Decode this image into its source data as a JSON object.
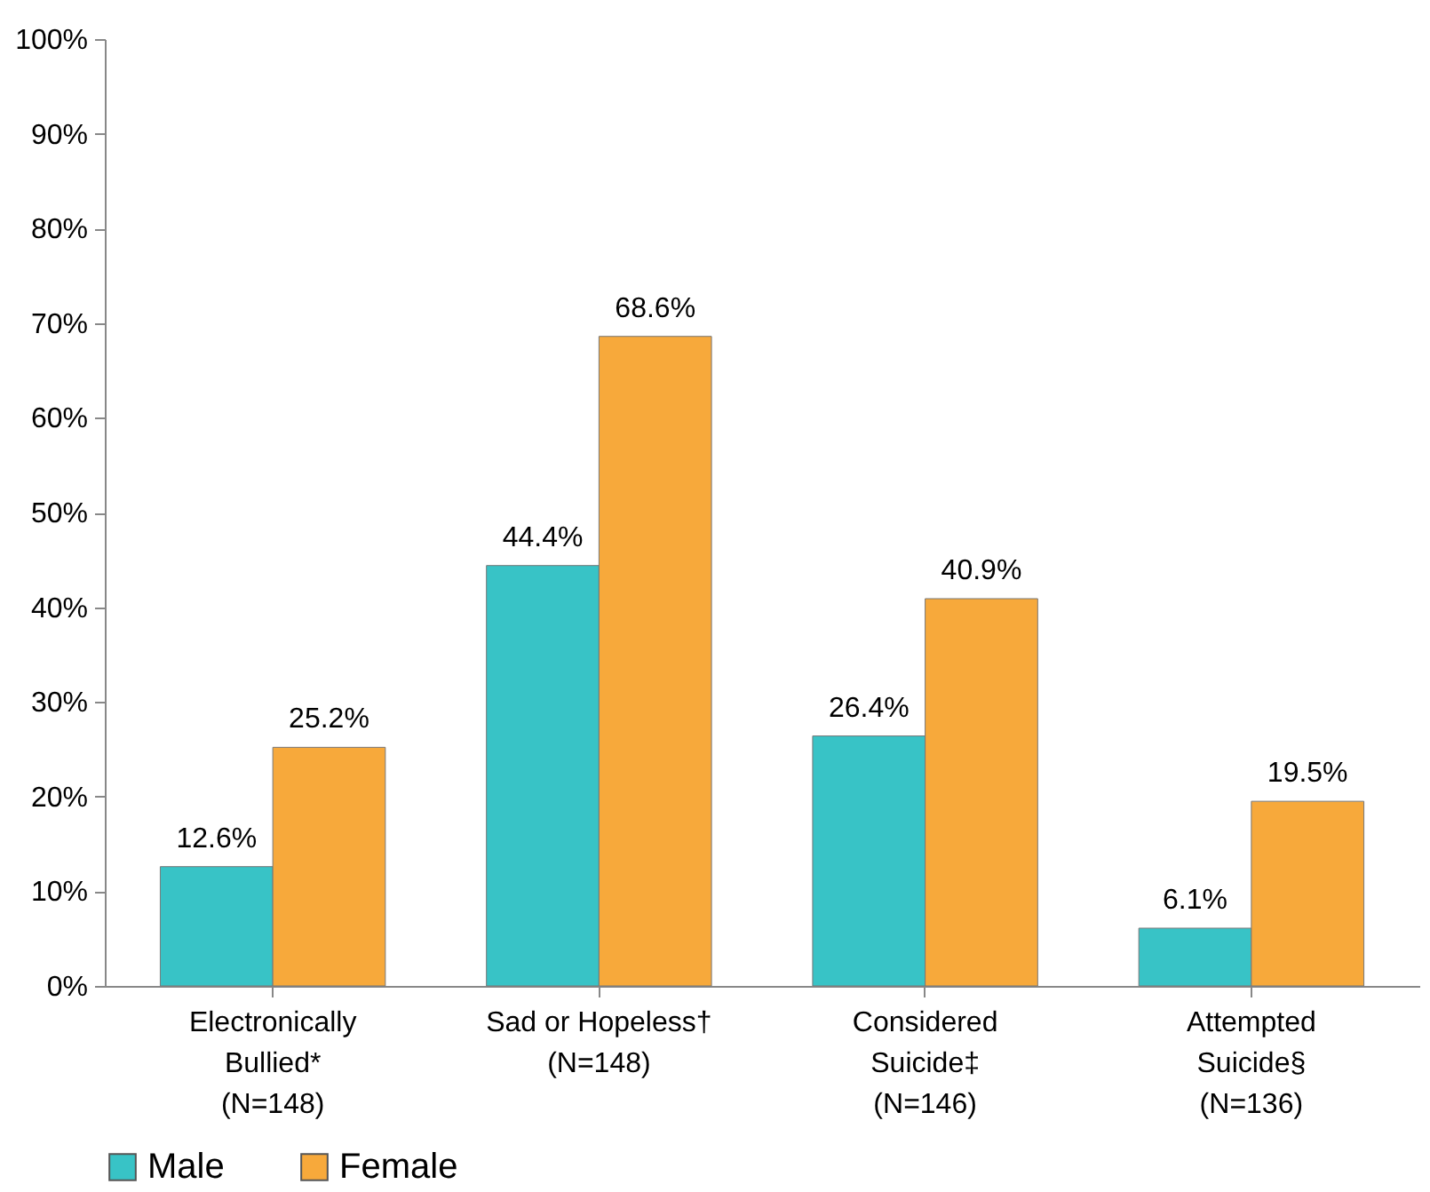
{
  "chart_data": {
    "type": "bar",
    "categories": [
      "Electronically\nBullied*\n(N=148)",
      "Sad or Hopeless†\n(N=148)",
      "Considered\nSuicide‡\n(N=146)",
      "Attempted\nSuicide§\n(N=136)"
    ],
    "series": [
      {
        "name": "Male",
        "color": "#38c3c6",
        "values": [
          12.6,
          44.4,
          26.4,
          6.1
        ],
        "value_labels": [
          "12.6%",
          "44.4%",
          "26.4%",
          "6.1%"
        ]
      },
      {
        "name": "Female",
        "color": "#f7a93b",
        "values": [
          25.2,
          68.6,
          40.9,
          19.5
        ],
        "value_labels": [
          "25.2%",
          "68.6%",
          "40.9%",
          "19.5%"
        ]
      }
    ],
    "ylim": [
      0,
      100
    ],
    "yticks": [
      {
        "value": 0,
        "label": "0%"
      },
      {
        "value": 10,
        "label": "10%"
      },
      {
        "value": 20,
        "label": "20%"
      },
      {
        "value": 30,
        "label": "30%"
      },
      {
        "value": 40,
        "label": "40%"
      },
      {
        "value": 50,
        "label": "50%"
      },
      {
        "value": 60,
        "label": "60%"
      },
      {
        "value": 70,
        "label": "70%"
      },
      {
        "value": 80,
        "label": "80%"
      },
      {
        "value": 90,
        "label": "90%"
      },
      {
        "value": 100,
        "label": "100%"
      }
    ],
    "legend": "bottom"
  }
}
